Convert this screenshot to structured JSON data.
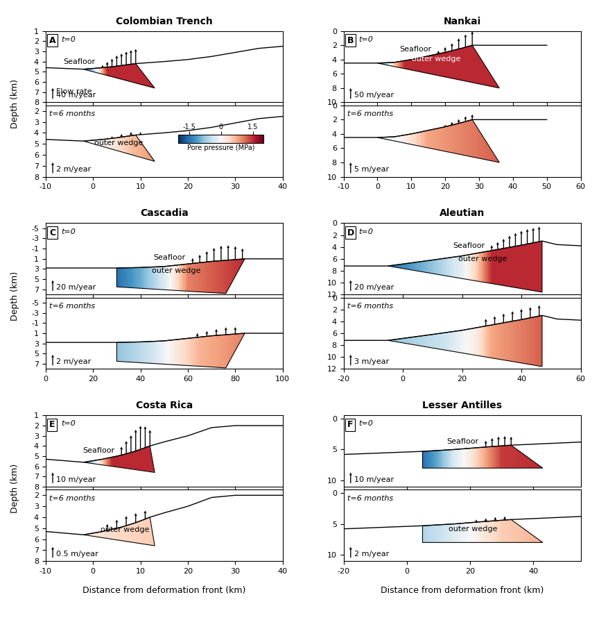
{
  "chart_data": [
    {
      "type": "section",
      "letter": "A",
      "title": "Colombian Trench",
      "xlim": [
        -10,
        40
      ],
      "xticks": [
        -10,
        0,
        10,
        20,
        30,
        40
      ],
      "ylabel": "Depth (km)",
      "seafloor": {
        "x": [
          -10,
          -2,
          2,
          5,
          9,
          15,
          20,
          25,
          30,
          35,
          40
        ],
        "y": [
          4.6,
          4.75,
          4.6,
          4.45,
          4.2,
          4.0,
          3.8,
          3.5,
          3.1,
          2.7,
          2.5
        ]
      },
      "wedge": {
        "x": [
          -2,
          2,
          5,
          9,
          13
        ],
        "y": [
          4.75,
          4.6,
          4.45,
          4.2,
          6.6
        ]
      },
      "rows": [
        {
          "time": "t=0",
          "ylim": [
            8,
            1
          ],
          "yticks": [
            1,
            2,
            3,
            4,
            5,
            6,
            7,
            8
          ],
          "pressure": {
            "x": [
              -2,
              0,
              1,
              3,
              13
            ],
            "values": [
              -1.5,
              -0.6,
              0,
              1.5,
              1.5
            ]
          },
          "flow": {
            "x": [
              2,
              3,
              4,
              5,
              6,
              7,
              8,
              9
            ],
            "values": [
              10,
              20,
              30,
              40,
              45,
              50,
              53,
              55
            ]
          },
          "scale": {
            "value": 40,
            "label": "40 m/year",
            "title": "Flow rate"
          },
          "seafloor_label": "Seafloor"
        },
        {
          "time": "t=6 months",
          "ylim": [
            8,
            1.5
          ],
          "yticks": [
            2,
            3,
            4,
            5,
            6,
            7,
            8
          ],
          "pressure": {
            "x": [
              -2,
              3,
              8,
              13
            ],
            "values": [
              0,
              0.1,
              0.6,
              0.9
            ]
          },
          "flow": {
            "x": [
              4,
              6,
              8,
              10
            ],
            "values": [
              0.4,
              0.6,
              0.7,
              0.5
            ]
          },
          "scale": {
            "value": 2,
            "label": "2 m/year"
          },
          "wedge_label": "outer wedge",
          "colorbar": {
            "label": "Pore pressure (MPa)",
            "lim": [
              -2,
              2
            ],
            "ticks": [
              -1.5,
              0,
              1.5
            ]
          }
        }
      ]
    },
    {
      "type": "section",
      "letter": "B",
      "title": "Nankai",
      "xlim": [
        -10,
        60
      ],
      "xticks": [
        -10,
        0,
        10,
        20,
        30,
        40,
        50,
        60
      ],
      "seafloor": {
        "x": [
          -10,
          0,
          5,
          10,
          15,
          20,
          25,
          28,
          35,
          50
        ],
        "y": [
          4.5,
          4.5,
          4.4,
          4.0,
          3.5,
          3.0,
          2.4,
          2.0,
          2.0,
          2.0
        ]
      },
      "wedge": {
        "x": [
          0,
          5,
          10,
          15,
          20,
          25,
          28,
          36
        ],
        "y": [
          4.5,
          4.4,
          4.0,
          3.5,
          3.0,
          2.4,
          2.0,
          8.0
        ]
      },
      "rows": [
        {
          "time": "t=0",
          "ylim": [
            10,
            0
          ],
          "yticks": [
            0,
            2,
            4,
            6,
            8,
            10
          ],
          "pressure": {
            "x": [
              0,
              3,
              5,
              8,
              12,
              36
            ],
            "values": [
              -1.5,
              -0.5,
              0.5,
              1.5,
              1.5,
              1.5
            ]
          },
          "flow": {
            "x": [
              18,
              20,
              22,
              24,
              26,
              28
            ],
            "values": [
              15,
              25,
              35,
              50,
              60,
              65
            ]
          },
          "scale": {
            "value": 50,
            "label": "50 m/year"
          },
          "seafloor_label": "Seafloor",
          "wedge_label": "outer wedge"
        },
        {
          "time": "t=6 months",
          "ylim": [
            10,
            0
          ],
          "yticks": [
            0,
            2,
            4,
            6,
            8,
            10
          ],
          "pressure": {
            "x": [
              0,
              8,
              15,
              36
            ],
            "values": [
              -0.3,
              0.1,
              0.8,
              1.2
            ]
          },
          "flow": {
            "x": [
              20,
              22,
              24,
              26,
              28
            ],
            "values": [
              1,
              1.5,
              2,
              2.5,
              2.5
            ]
          },
          "scale": {
            "value": 5,
            "label": "5 m/year"
          }
        }
      ]
    },
    {
      "type": "section",
      "letter": "C",
      "title": "Cascadia",
      "xlim": [
        0,
        100
      ],
      "xticks": [
        0,
        20,
        40,
        60,
        80,
        100
      ],
      "ylabel": "Depth (km)",
      "seafloor": {
        "x": [
          0,
          30,
          40,
          50,
          60,
          70,
          84,
          100
        ],
        "y": [
          2.8,
          2.8,
          2.7,
          2.5,
          2.0,
          1.5,
          1.0,
          1.0
        ]
      },
      "wedge": {
        "x": [
          30,
          40,
          50,
          60,
          70,
          84,
          76,
          30
        ],
        "y": [
          2.8,
          2.7,
          2.5,
          2.0,
          1.5,
          1.0,
          7.8,
          6.5
        ]
      },
      "rows": [
        {
          "time": "t=0",
          "ylim": [
            8,
            -6
          ],
          "yticks": [
            -5,
            -3,
            -1,
            1,
            3,
            5,
            7
          ],
          "pressure": {
            "x": [
              30,
              40,
              50,
              55,
              60,
              84
            ],
            "values": [
              -1.5,
              -1.0,
              -0.3,
              0.3,
              1.0,
              1.5
            ]
          },
          "flow": {
            "x": [
              62,
              65,
              68,
              71,
              74,
              77,
              80,
              83
            ],
            "values": [
              10,
              15,
              20,
              25,
              28,
              28,
              25,
              20
            ]
          },
          "scale": {
            "value": 20,
            "label": "20 m/year"
          },
          "seafloor_label": "Seafloor",
          "wedge_label": "outer wedge"
        },
        {
          "time": "t=6 months",
          "ylim": [
            8,
            -6
          ],
          "yticks": [
            -5,
            -3,
            -1,
            1,
            3,
            5,
            7
          ],
          "pressure": {
            "x": [
              30,
              45,
              55,
              65,
              84
            ],
            "values": [
              -0.8,
              -0.4,
              0.2,
              0.7,
              1.0
            ]
          },
          "flow": {
            "x": [
              64,
              68,
              72,
              76,
              80
            ],
            "values": [
              0.8,
              1.0,
              1.2,
              1.4,
              1.3
            ]
          },
          "scale": {
            "value": 2,
            "label": "2 m/year"
          }
        }
      ]
    },
    {
      "type": "section",
      "letter": "D",
      "title": "Aleutian",
      "xlim": [
        -20,
        60
      ],
      "xticks": [
        -20,
        0,
        20,
        40,
        60
      ],
      "seafloor": {
        "x": [
          -20,
          -5,
          10,
          20,
          30,
          40,
          47,
          52,
          60
        ],
        "y": [
          7.2,
          7.2,
          6.2,
          5.5,
          4.6,
          3.7,
          3.0,
          3.6,
          3.8
        ]
      },
      "wedge": {
        "x": [
          -5,
          10,
          20,
          30,
          40,
          47,
          47
        ],
        "y": [
          7.2,
          6.2,
          5.5,
          4.6,
          3.7,
          3.0,
          11.6
        ]
      },
      "rows": [
        {
          "time": "t=0",
          "ylim": [
            12,
            0
          ],
          "yticks": [
            0,
            2,
            4,
            6,
            8,
            10,
            12
          ],
          "pressure": {
            "x": [
              -5,
              10,
              20,
              25,
              30,
              47
            ],
            "values": [
              -1.5,
              -0.8,
              -0.2,
              0.5,
              1.5,
              1.5
            ]
          },
          "flow": {
            "x": [
              30,
              32,
              34,
              36,
              38,
              40,
              42,
              44,
              46
            ],
            "values": [
              10,
              14,
              18,
              22,
              25,
              27,
              28,
              28,
              28
            ]
          },
          "scale": {
            "value": 20,
            "label": "20 m/year"
          },
          "seafloor_label": "Seafloor",
          "wedge_label": "outer wedge"
        },
        {
          "time": "t=6 months",
          "ylim": [
            12,
            0
          ],
          "yticks": [
            0,
            2,
            4,
            6,
            8,
            10,
            12
          ],
          "pressure": {
            "x": [
              -5,
              15,
              25,
              30,
              47
            ],
            "values": [
              -0.8,
              -0.4,
              0.2,
              0.8,
              1.2
            ]
          },
          "flow": {
            "x": [
              28,
              31,
              34,
              37,
              40,
              43,
              46
            ],
            "values": [
              2,
              2.3,
              2.6,
              2.8,
              3,
              3,
              3
            ]
          },
          "scale": {
            "value": 3,
            "label": "3 m/year"
          }
        }
      ]
    },
    {
      "type": "section",
      "letter": "E",
      "title": "Costa Rica",
      "xlim": [
        -10,
        40
      ],
      "xticks": [
        -10,
        0,
        10,
        20,
        30,
        40
      ],
      "ylabel": "Depth (km)",
      "xlabel": "Distance from deformation front (km)",
      "seafloor": {
        "x": [
          -10,
          -2,
          2,
          6,
          9,
          12,
          15,
          20,
          25,
          30,
          40
        ],
        "y": [
          5.3,
          5.6,
          5.3,
          4.9,
          4.5,
          4.0,
          3.6,
          3.0,
          2.2,
          2.0,
          2.0
        ]
      },
      "wedge": {
        "x": [
          -2,
          2,
          6,
          9,
          12,
          13
        ],
        "y": [
          5.6,
          5.3,
          4.9,
          4.5,
          4.0,
          6.6
        ]
      },
      "rows": [
        {
          "time": "t=0",
          "ylim": [
            8,
            1
          ],
          "yticks": [
            1,
            2,
            3,
            4,
            5,
            6,
            7,
            8
          ],
          "pressure": {
            "x": [
              -2,
              0,
              2,
              4,
              13
            ],
            "values": [
              -1.5,
              -0.5,
              0.5,
              1.5,
              1.5
            ]
          },
          "flow": {
            "x": [
              6,
              7,
              8,
              9,
              10,
              11,
              12
            ],
            "values": [
              8,
              12,
              16,
              20,
              22,
              20,
              15
            ]
          },
          "scale": {
            "value": 10,
            "label": "10 m/year"
          },
          "seafloor_label": "Seafloor"
        },
        {
          "time": "t=6 months",
          "ylim": [
            8,
            1.5
          ],
          "yticks": [
            2,
            3,
            4,
            5,
            6,
            7,
            8
          ],
          "pressure": {
            "x": [
              -2,
              5,
              13
            ],
            "values": [
              0.2,
              0.4,
              0.5
            ]
          },
          "flow": {
            "x": [
              3,
              5,
              7,
              9,
              11
            ],
            "values": [
              0.3,
              0.4,
              0.45,
              0.45,
              0.4
            ]
          },
          "scale": {
            "value": 0.5,
            "label": "0.5 m/year"
          },
          "wedge_label": "outer wedge"
        }
      ]
    },
    {
      "type": "section",
      "letter": "F",
      "title": "Lesser Antilles",
      "xlim": [
        -20,
        55
      ],
      "xticks": [
        -20,
        0,
        20,
        40
      ],
      "xlabel": "Distance from deformation front (km)",
      "seafloor": {
        "x": [
          -20,
          5,
          15,
          25,
          33,
          55
        ],
        "y": [
          5.8,
          5.3,
          5.0,
          4.6,
          4.3,
          3.8
        ]
      },
      "wedge": {
        "x": [
          5,
          15,
          25,
          33,
          43,
          5
        ],
        "y": [
          5.3,
          5.0,
          4.6,
          4.3,
          8.0,
          8.0
        ]
      },
      "rows": [
        {
          "time": "t=0",
          "ylim": [
            11,
            -0.5
          ],
          "yticks": [
            0,
            5,
            10
          ],
          "pressure": {
            "x": [
              5,
              10,
              15,
              20,
              25,
              30,
              43
            ],
            "values": [
              -1.5,
              -1.0,
              -0.3,
              0.2,
              0.8,
              1.4,
              1.5
            ]
          },
          "flow": {
            "x": [
              25,
              27,
              29,
              31,
              33
            ],
            "values": [
              6,
              8,
              9,
              9,
              8
            ]
          },
          "scale": {
            "value": 10,
            "label": "10 m/year"
          },
          "seafloor_label": "Seafloor"
        },
        {
          "time": "t=6 months",
          "ylim": [
            11,
            -0.5
          ],
          "yticks": [
            0,
            5,
            10
          ],
          "pressure": {
            "x": [
              5,
              12,
              20,
              30,
              43
            ],
            "values": [
              -0.6,
              -0.4,
              0,
              0.5,
              0.7
            ]
          },
          "flow": {
            "x": [
              22,
              25,
              28,
              31
            ],
            "values": [
              0.5,
              0.6,
              0.7,
              0.7
            ]
          },
          "scale": {
            "value": 2,
            "label": "2 m/year"
          },
          "wedge_label": "outer wedge"
        }
      ]
    }
  ]
}
